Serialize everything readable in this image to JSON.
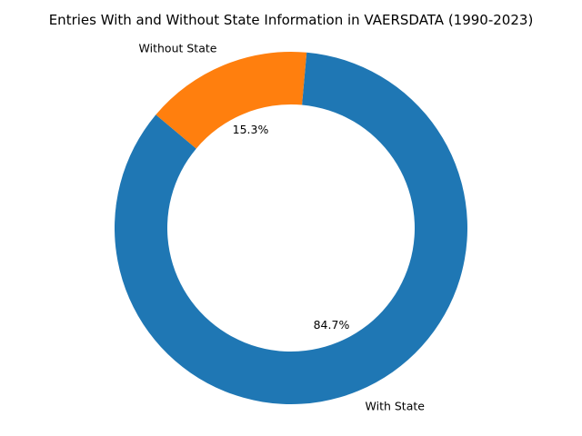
{
  "chart_data": {
    "type": "pie",
    "style": "donut",
    "title": "Entries With and Without State Information in VAERSDATA (1990-2023)",
    "slices": [
      {
        "label": "With State",
        "value": 84.7,
        "display": "84.7%",
        "color": "#1f77b4"
      },
      {
        "label": "Without State",
        "value": 15.3,
        "display": "15.3%",
        "color": "#ff7f0e"
      }
    ],
    "start_angle_deg": 140,
    "direction": "counterclockwise",
    "legend": "none"
  }
}
